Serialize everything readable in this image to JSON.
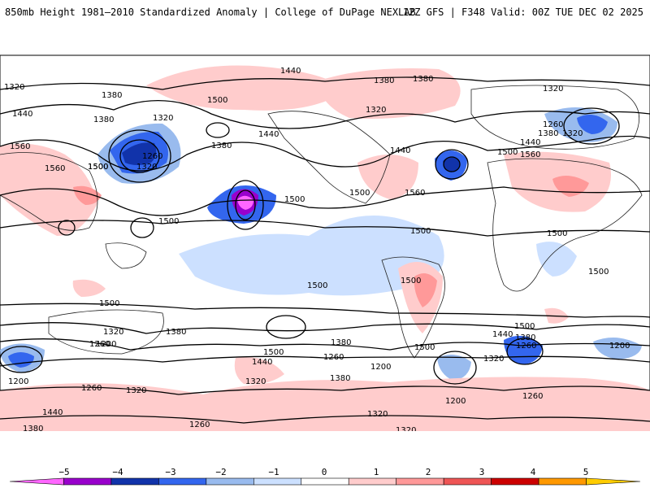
{
  "header": {
    "title": "850mb Height 1981–2010 Standardized Anomaly | College of DuPage NEXLAB",
    "run_info": "12Z GFS | F348 Valid: 00Z TUE DEC 02 2025"
  },
  "colorbar": {
    "ticks": [
      "−5",
      "−4",
      "−3",
      "−2",
      "−1",
      "0",
      "1",
      "2",
      "3",
      "4",
      "5"
    ],
    "colors": [
      "#ff66ff",
      "#9900cc",
      "#1133aa",
      "#3366ee",
      "#99bbee",
      "#cce0ff",
      "#ffffff",
      "#ffcccc",
      "#ff9999",
      "#ee5555",
      "#cc0000",
      "#ff9900",
      "#ffcc00"
    ]
  },
  "map": {
    "contour_labels": [
      "1440",
      "1320",
      "1380",
      "1380",
      "1380",
      "1500",
      "1320",
      "1440",
      "1380",
      "1320",
      "1260",
      "1320",
      "1500",
      "1380",
      "1440",
      "1560",
      "1560",
      "1500",
      "1500",
      "1260",
      "1320",
      "1440",
      "1380",
      "1320",
      "1560",
      "1500",
      "1500",
      "1440",
      "1500",
      "1560",
      "1500",
      "1500",
      "1500",
      "1500",
      "1500",
      "1500",
      "1380",
      "1320",
      "1260",
      "1380",
      "1440",
      "1320",
      "1200",
      "1260",
      "1200",
      "1320",
      "1200",
      "1260",
      "1380",
      "1440",
      "1380",
      "1260",
      "1320",
      "1200",
      "1320",
      "1200",
      "1260",
      "1440",
      "1380",
      "1260",
      "1320",
      "1500",
      "1500",
      "1500"
    ]
  }
}
